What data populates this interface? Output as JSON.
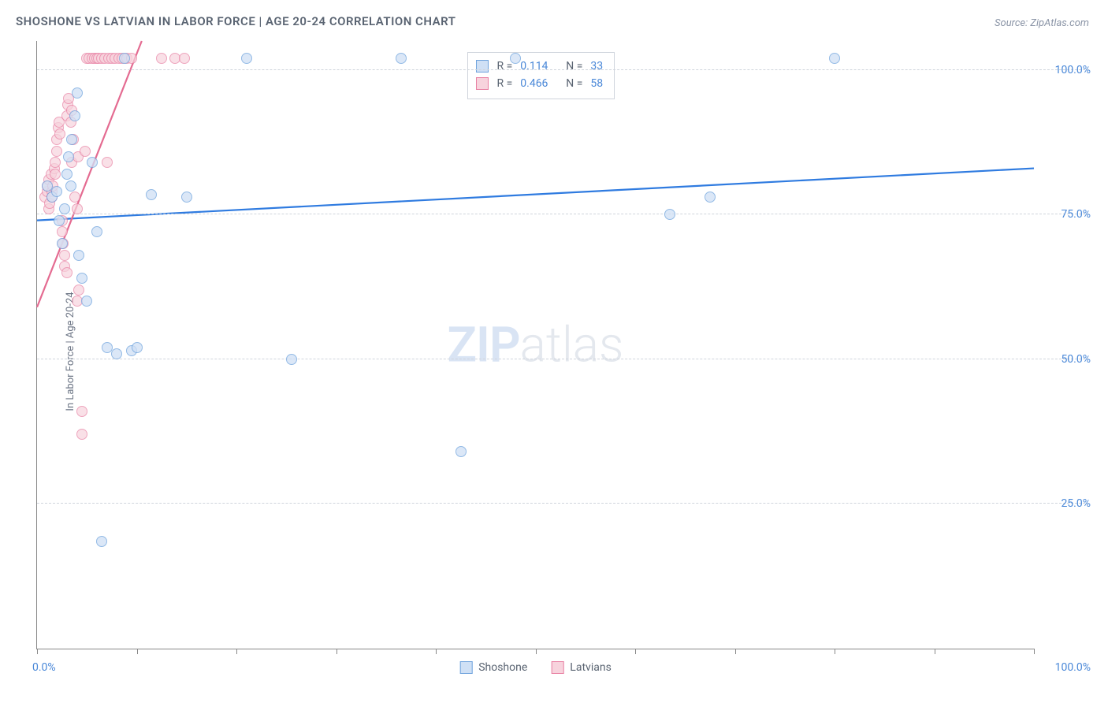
{
  "chart": {
    "type": "scatter",
    "title": "SHOSHONE VS LATVIAN IN LABOR FORCE | AGE 20-24 CORRELATION CHART",
    "source": "Source: ZipAtlas.com",
    "ylabel": "In Labor Force | Age 20-24",
    "background_color": "#ffffff",
    "grid_color": "#cfd4dc",
    "axis_color": "#888888",
    "text_color": "#5a6472",
    "value_color": "#4a88d8",
    "title_fontsize": 15,
    "label_fontsize": 13,
    "tick_fontsize": 14,
    "xlim": [
      0,
      100
    ],
    "ylim": [
      0,
      105
    ],
    "y_ticks": [
      25,
      50,
      75,
      100
    ],
    "y_tick_labels": [
      "25.0%",
      "50.0%",
      "75.0%",
      "100.0%"
    ],
    "x_tick_positions": [
      0,
      10,
      20,
      30,
      40,
      50,
      60,
      70,
      80,
      90,
      100
    ],
    "x_left_label": "0.0%",
    "x_right_label": "100.0%",
    "watermark": {
      "zip": "ZIP",
      "atlas": "atlas",
      "zip_color": "#d9e4f4",
      "atlas_color": "#e4e8ee",
      "fontsize": 62
    },
    "series": [
      {
        "name": "Shoshone",
        "marker_fill": "#cfe0f5",
        "marker_stroke": "#6fa3dd",
        "marker_opacity": 0.75,
        "marker_radius_px": 7,
        "line_color": "#2f7be0",
        "line_width": 2.2,
        "regression": {
          "x1": 0,
          "y1": 74,
          "x2": 100,
          "y2": 83
        },
        "stats": {
          "R": "0.114",
          "N": "33"
        },
        "points": [
          [
            1.0,
            80
          ],
          [
            1.5,
            78
          ],
          [
            2.0,
            79
          ],
          [
            2.2,
            74
          ],
          [
            2.5,
            70
          ],
          [
            3.0,
            82
          ],
          [
            3.2,
            85
          ],
          [
            3.5,
            88
          ],
          [
            3.8,
            92
          ],
          [
            4.0,
            96
          ],
          [
            4.2,
            68
          ],
          [
            4.5,
            64
          ],
          [
            5.0,
            60
          ],
          [
            5.5,
            84
          ],
          [
            6.0,
            72
          ],
          [
            6.5,
            18.5
          ],
          [
            7.0,
            52
          ],
          [
            8.0,
            51
          ],
          [
            8.8,
            102
          ],
          [
            9.5,
            51.5
          ],
          [
            10.0,
            52
          ],
          [
            11.5,
            78.5
          ],
          [
            15.0,
            78
          ],
          [
            21.0,
            102
          ],
          [
            25.5,
            50
          ],
          [
            36.5,
            102
          ],
          [
            42.5,
            34
          ],
          [
            48.0,
            102
          ],
          [
            63.5,
            75
          ],
          [
            67.5,
            78
          ],
          [
            80.0,
            102
          ],
          [
            2.8,
            76
          ],
          [
            3.4,
            80
          ]
        ]
      },
      {
        "name": "Latvians",
        "marker_fill": "#f7d3dd",
        "marker_stroke": "#e87fa2",
        "marker_opacity": 0.7,
        "marker_radius_px": 7,
        "line_color": "#e46b91",
        "line_width": 2.2,
        "regression": {
          "x1": 0,
          "y1": 59,
          "x2": 10.5,
          "y2": 105
        },
        "stats": {
          "R": "0.466",
          "N": "58"
        },
        "points": [
          [
            0.8,
            78
          ],
          [
            1.0,
            79
          ],
          [
            1.0,
            80
          ],
          [
            1.2,
            81
          ],
          [
            1.2,
            76
          ],
          [
            1.3,
            77
          ],
          [
            1.4,
            82
          ],
          [
            1.5,
            79
          ],
          [
            1.5,
            78
          ],
          [
            1.6,
            80
          ],
          [
            1.7,
            83
          ],
          [
            1.8,
            84
          ],
          [
            1.8,
            82
          ],
          [
            2.0,
            86
          ],
          [
            2.0,
            88
          ],
          [
            2.1,
            90
          ],
          [
            2.2,
            91
          ],
          [
            2.3,
            89
          ],
          [
            2.5,
            74
          ],
          [
            2.5,
            72
          ],
          [
            2.6,
            70
          ],
          [
            2.8,
            68
          ],
          [
            2.8,
            66
          ],
          [
            3.0,
            65
          ],
          [
            3.0,
            92
          ],
          [
            3.1,
            94
          ],
          [
            3.2,
            95
          ],
          [
            3.4,
            91
          ],
          [
            3.5,
            93
          ],
          [
            3.5,
            84
          ],
          [
            3.6,
            88
          ],
          [
            3.8,
            78
          ],
          [
            4.0,
            76
          ],
          [
            4.0,
            60
          ],
          [
            4.1,
            85
          ],
          [
            4.2,
            62
          ],
          [
            4.5,
            41
          ],
          [
            4.5,
            37
          ],
          [
            4.8,
            86
          ],
          [
            5.0,
            102
          ],
          [
            5.2,
            102
          ],
          [
            5.5,
            102
          ],
          [
            5.8,
            102
          ],
          [
            6.0,
            102
          ],
          [
            6.2,
            102
          ],
          [
            6.5,
            102
          ],
          [
            6.8,
            102
          ],
          [
            7.0,
            84
          ],
          [
            7.2,
            102
          ],
          [
            7.5,
            102
          ],
          [
            7.8,
            102
          ],
          [
            8.2,
            102
          ],
          [
            8.5,
            102
          ],
          [
            9.0,
            102
          ],
          [
            9.5,
            102
          ],
          [
            12.5,
            102
          ],
          [
            13.8,
            102
          ],
          [
            14.8,
            102
          ]
        ]
      }
    ],
    "stats_box": {
      "left_pct": 43.2,
      "top_pct": 1.8
    },
    "legend": {
      "items": [
        {
          "label": "Shoshone",
          "fill": "#cfe0f5",
          "stroke": "#6fa3dd"
        },
        {
          "label": "Latvians",
          "fill": "#f7d3dd",
          "stroke": "#e87fa2"
        }
      ]
    }
  }
}
